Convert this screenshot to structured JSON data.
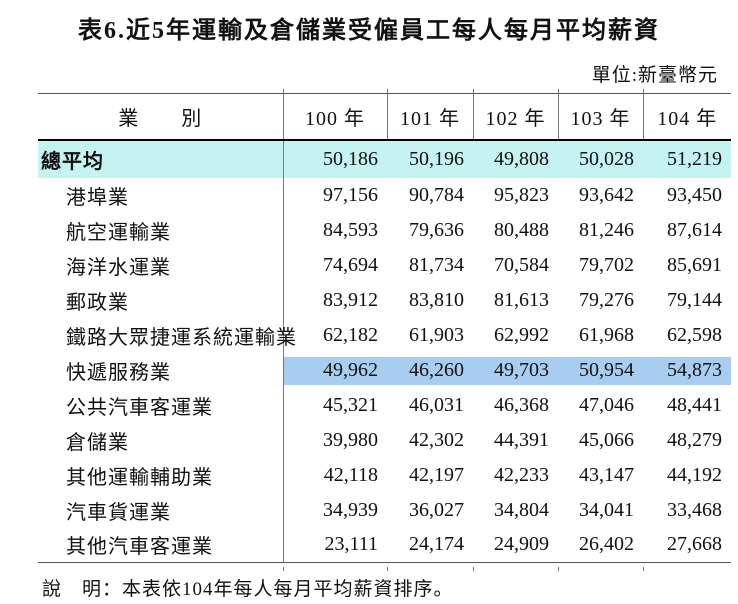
{
  "title": "表6.近5年運輸及倉儲業受僱員工每人每月平均薪資",
  "unit_label": "單位:新臺幣元",
  "table": {
    "header": {
      "category": "業　　別",
      "years": [
        "100 年",
        "101 年",
        "102 年",
        "103 年",
        "104 年"
      ]
    },
    "rows": [
      {
        "label": "總平均",
        "values": [
          "50,186",
          "50,196",
          "49,808",
          "50,028",
          "51,219"
        ],
        "highlight": "total",
        "bold": true,
        "indent": false
      },
      {
        "label": "港埠業",
        "values": [
          "97,156",
          "90,784",
          "95,823",
          "93,642",
          "93,450"
        ],
        "highlight": "none",
        "bold": false,
        "indent": true
      },
      {
        "label": "航空運輸業",
        "values": [
          "84,593",
          "79,636",
          "80,488",
          "81,246",
          "87,614"
        ],
        "highlight": "none",
        "bold": false,
        "indent": true
      },
      {
        "label": "海洋水運業",
        "values": [
          "74,694",
          "81,734",
          "70,584",
          "79,702",
          "85,691"
        ],
        "highlight": "none",
        "bold": false,
        "indent": true
      },
      {
        "label": "郵政業",
        "values": [
          "83,912",
          "83,810",
          "81,613",
          "79,276",
          "79,144"
        ],
        "highlight": "none",
        "bold": false,
        "indent": true
      },
      {
        "label": "鐵路大眾捷運系統運輸業",
        "values": [
          "62,182",
          "61,903",
          "62,992",
          "61,968",
          "62,598"
        ],
        "highlight": "none",
        "bold": false,
        "indent": true
      },
      {
        "label": "快遞服務業",
        "values": [
          "49,962",
          "46,260",
          "49,703",
          "50,954",
          "54,873"
        ],
        "highlight": "express",
        "bold": false,
        "indent": true
      },
      {
        "label": "公共汽車客運業",
        "values": [
          "45,321",
          "46,031",
          "46,368",
          "47,046",
          "48,441"
        ],
        "highlight": "none",
        "bold": false,
        "indent": true
      },
      {
        "label": "倉儲業",
        "values": [
          "39,980",
          "42,302",
          "44,391",
          "45,066",
          "48,279"
        ],
        "highlight": "none",
        "bold": false,
        "indent": true
      },
      {
        "label": "其他運輸輔助業",
        "values": [
          "42,118",
          "42,197",
          "42,233",
          "43,147",
          "44,192"
        ],
        "highlight": "none",
        "bold": false,
        "indent": true
      },
      {
        "label": "汽車貨運業",
        "values": [
          "34,939",
          "36,027",
          "34,804",
          "34,041",
          "33,468"
        ],
        "highlight": "none",
        "bold": false,
        "indent": true
      },
      {
        "label": "其他汽車客運業",
        "values": [
          "23,111",
          "24,174",
          "24,909",
          "26,402",
          "27,668"
        ],
        "highlight": "none",
        "bold": false,
        "indent": true
      }
    ]
  },
  "footnote": "說　明：本表依104年每人每月平均薪資排序。",
  "colors": {
    "total_row_highlight": "#c5f3f1",
    "express_row_highlight": "#a9cdf1"
  }
}
